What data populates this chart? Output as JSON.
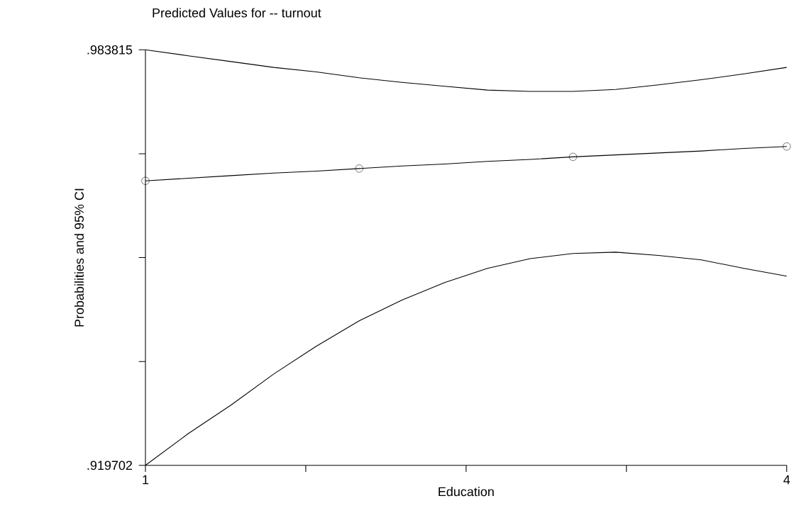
{
  "chart_data": {
    "type": "line",
    "title": "Predicted Values for  -- turnout",
    "xlabel": "Education",
    "ylabel": "Probabilities and 95% CI",
    "x": [
      1,
      1.2,
      1.4,
      1.6,
      1.8,
      2,
      2.2,
      2.4,
      2.6,
      2.8,
      3,
      3.2,
      3.4,
      3.6,
      3.8,
      4
    ],
    "series": [
      {
        "color": "#000000",
        "marker": "none",
        "values": [
          0.983815,
          0.9829,
          0.982,
          0.9811,
          0.9804,
          0.9795,
          0.9788,
          0.9782,
          0.9776,
          0.9774,
          0.9774,
          0.9777,
          0.9784,
          0.9792,
          0.9801,
          0.9811
        ]
      },
      {
        "color": "#000000",
        "marker": "none",
        "values": [
          0.9636,
          0.964,
          0.9644,
          0.9648,
          0.9651,
          0.9655,
          0.9659,
          0.9662,
          0.9666,
          0.9669,
          0.9673,
          0.9676,
          0.9679,
          0.9682,
          0.9686,
          0.9689
        ]
      },
      {
        "type": "scatter",
        "color": "#000000",
        "marker": "circle",
        "x": [
          1,
          2,
          3,
          4
        ],
        "values": [
          0.9636,
          0.9655,
          0.9673,
          0.9689
        ]
      },
      {
        "color": "#000000",
        "marker": "none",
        "values": [
          0.919702,
          0.9246,
          0.929,
          0.9338,
          0.9381,
          0.942,
          0.9452,
          0.9479,
          0.9501,
          0.9516,
          0.9524,
          0.9526,
          0.9521,
          0.9514,
          0.9501,
          0.9489
        ]
      }
    ],
    "xlim": [
      1,
      4
    ],
    "ylim": [
      0.919702,
      0.983815
    ],
    "xticks": [
      1,
      {
        "value": 1.75,
        "label": null
      },
      {
        "value": 2.5,
        "label": null
      },
      {
        "value": 3.25,
        "label": null
      },
      4
    ],
    "yticks": [
      {
        "value": 0.919702,
        "label": ".919702"
      },
      {
        "value": 0.9357302,
        "label": null
      },
      {
        "value": 0.951759,
        "label": null
      },
      {
        "value": 0.967787,
        "label": null
      },
      {
        "value": 0.983815,
        "label": ".983815"
      }
    ],
    "grid": false
  }
}
